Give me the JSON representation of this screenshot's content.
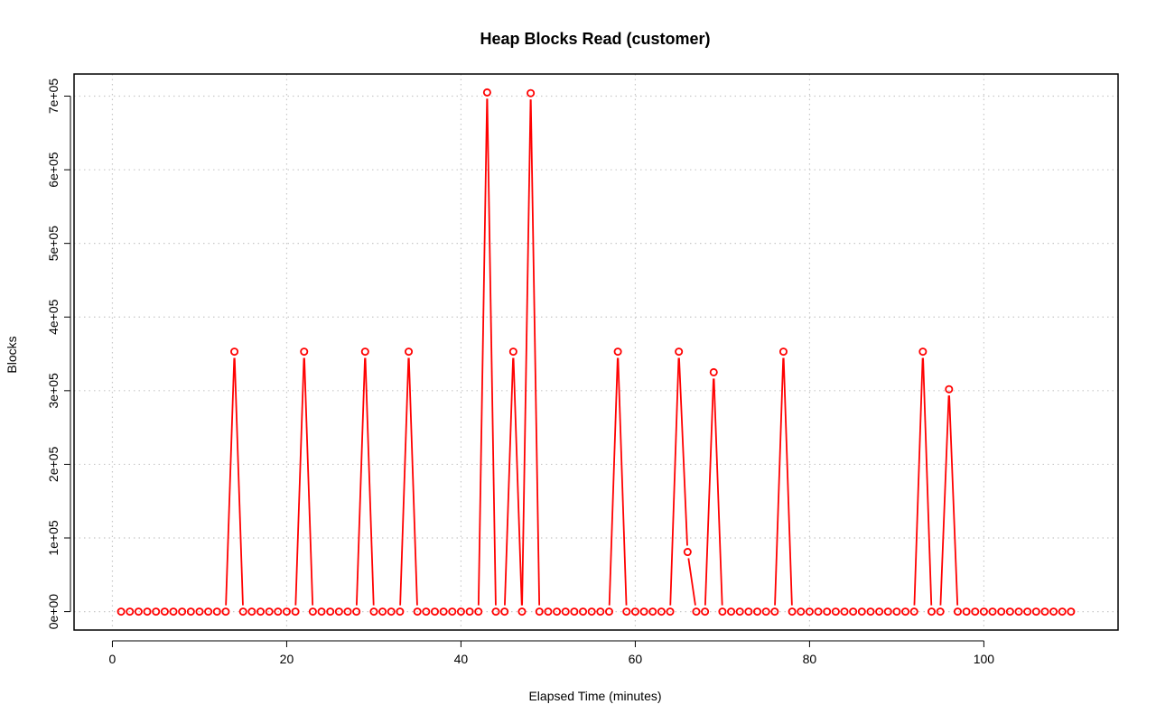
{
  "chart_data": {
    "type": "line",
    "title": "Heap Blocks Read (customer)",
    "xlabel": "Elapsed Time (minutes)",
    "ylabel": "Blocks",
    "xlim": [
      -4.4,
      115.4
    ],
    "ylim": [
      -25000,
      730000
    ],
    "x_ticks": [
      0,
      20,
      40,
      60,
      80,
      100
    ],
    "x_tick_labels": [
      "0",
      "20",
      "40",
      "60",
      "80",
      "100"
    ],
    "y_ticks": [
      0,
      100000,
      200000,
      300000,
      400000,
      500000,
      600000,
      700000
    ],
    "y_tick_labels": [
      "0e+00",
      "1e+05",
      "2e+05",
      "3e+05",
      "4e+05",
      "5e+05",
      "6e+05",
      "7e+05"
    ],
    "grid": true,
    "series": [
      {
        "color": "#ff0000",
        "marker": "open-circle",
        "x": [
          1,
          2,
          3,
          4,
          5,
          6,
          7,
          8,
          9,
          10,
          11,
          12,
          13,
          14,
          15,
          16,
          17,
          18,
          19,
          20,
          21,
          22,
          23,
          24,
          25,
          26,
          27,
          28,
          29,
          30,
          31,
          32,
          33,
          34,
          35,
          36,
          37,
          38,
          39,
          40,
          41,
          42,
          43,
          44,
          45,
          46,
          47,
          48,
          49,
          50,
          51,
          52,
          53,
          54,
          55,
          56,
          57,
          58,
          59,
          60,
          61,
          62,
          63,
          64,
          65,
          66,
          67,
          68,
          69,
          70,
          71,
          72,
          73,
          74,
          75,
          76,
          77,
          78,
          79,
          80,
          81,
          82,
          83,
          84,
          85,
          86,
          87,
          88,
          89,
          90,
          91,
          92,
          93,
          94,
          95,
          96,
          97,
          98,
          99,
          100,
          101,
          102,
          103,
          104,
          105,
          106,
          107,
          108,
          109,
          110
        ],
        "values": [
          0,
          0,
          0,
          0,
          0,
          0,
          0,
          0,
          0,
          0,
          0,
          0,
          0,
          353000,
          0,
          0,
          0,
          0,
          0,
          0,
          0,
          353000,
          0,
          0,
          0,
          0,
          0,
          0,
          353000,
          0,
          0,
          0,
          0,
          353000,
          0,
          0,
          0,
          0,
          0,
          0,
          0,
          0,
          705000,
          0,
          0,
          353000,
          0,
          704000,
          0,
          0,
          0,
          0,
          0,
          0,
          0,
          0,
          0,
          353000,
          0,
          0,
          0,
          0,
          0,
          0,
          353000,
          81000,
          0,
          0,
          325000,
          0,
          0,
          0,
          0,
          0,
          0,
          0,
          353000,
          0,
          0,
          0,
          0,
          0,
          0,
          0,
          0,
          0,
          0,
          0,
          0,
          0,
          0,
          0,
          353000,
          0,
          0,
          302000,
          0,
          0,
          0,
          0,
          0,
          0,
          0,
          0,
          0,
          0,
          0,
          0,
          0,
          0
        ]
      }
    ]
  }
}
